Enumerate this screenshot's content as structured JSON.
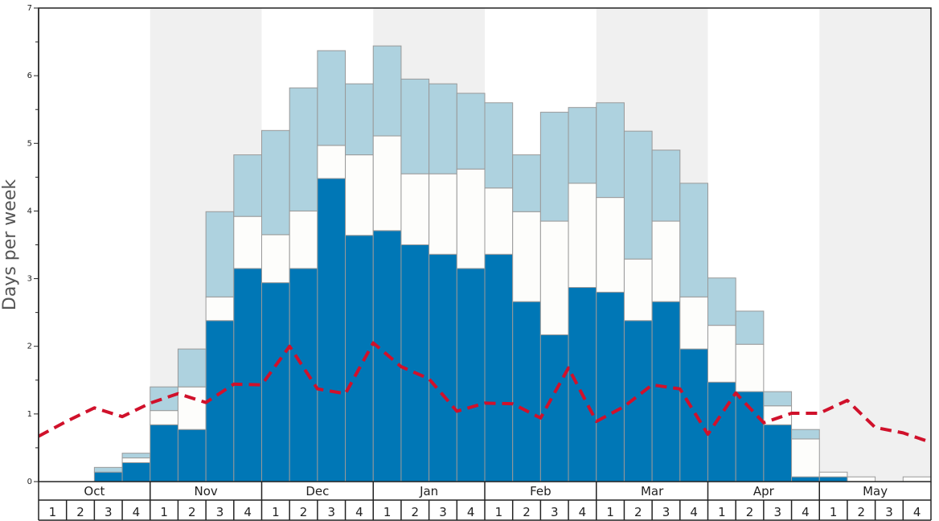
{
  "chart_data": {
    "type": "bar",
    "ylabel": "Days per week",
    "ylim": [
      0,
      7
    ],
    "yticks": [
      0,
      1,
      2,
      3,
      4,
      5,
      6,
      7
    ],
    "months": [
      "Oct",
      "Nov",
      "Dec",
      "Jan",
      "Feb",
      "Mar",
      "Apr",
      "May"
    ],
    "week_labels": [
      "1",
      "2",
      "3",
      "4"
    ],
    "colors": {
      "series_1": "#0077b6",
      "series_2": "#fdfdfb",
      "series_3": "#aed2df",
      "line": "#d0112b",
      "shade": "#f0f0f0",
      "bar_stroke": "#999999"
    },
    "series": [
      {
        "values": [
          0,
          0,
          0.14,
          0.28,
          0.84,
          0.77,
          2.38,
          3.15,
          2.94,
          3.15,
          4.48,
          3.64,
          3.71,
          3.5,
          3.36,
          3.15,
          3.36,
          2.66,
          2.17,
          2.87,
          2.8,
          2.38,
          2.66,
          1.96,
          1.47,
          1.33,
          0.84,
          0.07,
          0.07,
          0,
          0,
          0
        ]
      },
      {
        "values": [
          0,
          0,
          0,
          0.07,
          0.21,
          0.63,
          0.35,
          0.77,
          0.71,
          0.85,
          0.49,
          1.19,
          1.4,
          1.05,
          1.19,
          1.47,
          0.98,
          1.33,
          1.68,
          1.54,
          1.4,
          0.91,
          1.19,
          0.77,
          0.84,
          0.7,
          0.28,
          0.56,
          0.07,
          0.07,
          0,
          0.07
        ]
      },
      {
        "values": [
          0,
          0,
          0.07,
          0.07,
          0.35,
          0.56,
          1.26,
          0.91,
          1.54,
          1.82,
          1.4,
          1.05,
          1.33,
          1.4,
          1.33,
          1.12,
          1.26,
          0.84,
          1.61,
          1.12,
          1.4,
          1.89,
          1.05,
          1.68,
          0.7,
          0.49,
          0.21,
          0.14,
          0,
          0,
          0,
          0
        ]
      }
    ],
    "line": {
      "style": "dashed",
      "values": [
        0.67,
        0.89,
        1.09,
        0.96,
        1.16,
        1.3,
        1.17,
        1.44,
        1.43,
        2.0,
        1.37,
        1.3,
        2.05,
        1.7,
        1.52,
        1.04,
        1.16,
        1.15,
        0.94,
        1.68,
        0.89,
        1.11,
        1.43,
        1.37,
        0.7,
        1.31,
        0.87,
        1.01,
        1.01,
        1.2,
        0.8,
        0.72,
        0.58
      ]
    }
  }
}
